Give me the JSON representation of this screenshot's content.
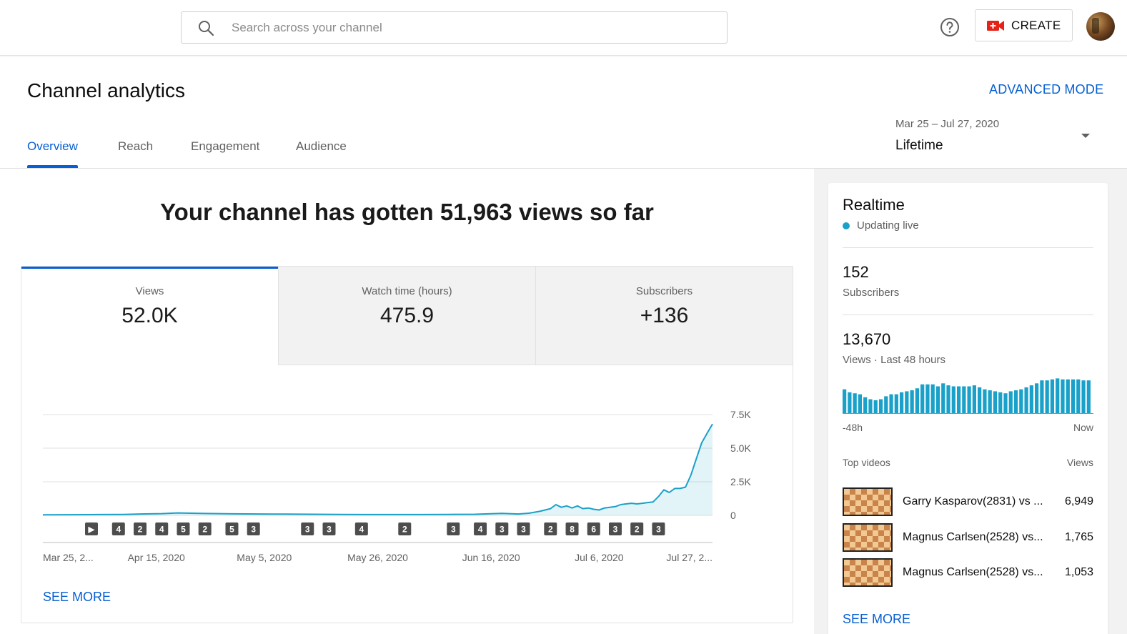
{
  "search": {
    "placeholder": "Search across your channel"
  },
  "topbar": {
    "create_label": "CREATE"
  },
  "header": {
    "title": "Channel analytics",
    "advanced_mode": "ADVANCED MODE",
    "tabs": [
      {
        "label": "Overview",
        "active": true
      },
      {
        "label": "Reach",
        "active": false
      },
      {
        "label": "Engagement",
        "active": false
      },
      {
        "label": "Audience",
        "active": false
      }
    ],
    "date_range": "Mar 25 – Jul 27, 2020",
    "date_selection": "Lifetime"
  },
  "main": {
    "headline": "Your channel has gotten 51,963 views so far",
    "metric_tabs": [
      {
        "label": "Views",
        "value": "52.0K",
        "active": true
      },
      {
        "label": "Watch time (hours)",
        "value": "475.9",
        "active": false
      },
      {
        "label": "Subscribers",
        "value": "+136",
        "active": false
      }
    ],
    "see_more": "SEE MORE"
  },
  "chart_data": {
    "type": "area",
    "title": "",
    "xlabel": "",
    "ylabel": "",
    "ylim": [
      0,
      7500
    ],
    "y_ticks": [
      "0",
      "2.5K",
      "5.0K",
      "7.5K"
    ],
    "x_tick_labels": [
      "Mar 25, 2...",
      "Apr 15, 2020",
      "May 5, 2020",
      "May 26, 2020",
      "Jun 16, 2020",
      "Jul 6, 2020",
      "Jul 27, 2..."
    ],
    "x_tick_days": [
      0,
      21,
      41,
      62,
      83,
      103,
      124
    ],
    "color": "#1aa1c9",
    "series": [
      {
        "x": [
          0,
          5,
          10,
          15,
          18,
          20,
          22,
          25,
          30,
          35,
          40,
          45,
          50,
          55,
          60,
          65,
          70,
          75,
          80,
          85,
          88,
          90,
          92,
          94,
          95,
          96,
          97,
          98,
          99,
          100,
          101,
          102,
          103,
          104,
          105,
          106,
          107,
          108,
          109,
          110,
          111,
          112,
          113,
          114,
          115,
          116,
          117,
          118,
          119,
          120,
          121,
          122,
          123,
          124
        ],
        "values": [
          40,
          50,
          60,
          70,
          100,
          110,
          130,
          180,
          140,
          110,
          100,
          90,
          80,
          70,
          60,
          60,
          60,
          70,
          80,
          150,
          100,
          160,
          300,
          500,
          800,
          600,
          700,
          550,
          700,
          500,
          550,
          450,
          400,
          550,
          600,
          650,
          800,
          850,
          900,
          850,
          900,
          950,
          1000,
          1400,
          1900,
          1700,
          2000,
          2000,
          2100,
          3000,
          4200,
          5400,
          6100,
          6800
        ]
      }
    ],
    "annotation_markers": [
      {
        "day": 9,
        "label": "▶"
      },
      {
        "day": 14,
        "label": "4"
      },
      {
        "day": 18,
        "label": "2"
      },
      {
        "day": 22,
        "label": "4"
      },
      {
        "day": 26,
        "label": "5"
      },
      {
        "day": 30,
        "label": "2"
      },
      {
        "day": 35,
        "label": "5"
      },
      {
        "day": 39,
        "label": "3"
      },
      {
        "day": 49,
        "label": "3"
      },
      {
        "day": 53,
        "label": "3"
      },
      {
        "day": 59,
        "label": "4"
      },
      {
        "day": 67,
        "label": "2"
      },
      {
        "day": 76,
        "label": "3"
      },
      {
        "day": 81,
        "label": "4"
      },
      {
        "day": 85,
        "label": "3"
      },
      {
        "day": 89,
        "label": "3"
      },
      {
        "day": 94,
        "label": "2"
      },
      {
        "day": 98,
        "label": "8"
      },
      {
        "day": 102,
        "label": "6"
      },
      {
        "day": 106,
        "label": "3"
      },
      {
        "day": 110,
        "label": "2"
      },
      {
        "day": 114,
        "label": "3"
      }
    ]
  },
  "realtime": {
    "title": "Realtime",
    "status": "Updating live",
    "subscribers_value": "152",
    "subscribers_label": "Subscribers",
    "views_value": "13,670",
    "views_label": "Views · Last 48 hours",
    "axis_start": "-48h",
    "axis_end": "Now",
    "bar_chart": {
      "type": "bar",
      "color": "#1aa1c9",
      "values": [
        24,
        21,
        20,
        19,
        16,
        14,
        13,
        14,
        17,
        19,
        19,
        21,
        22,
        23,
        25,
        29,
        29,
        29,
        27,
        30,
        28,
        27,
        27,
        27,
        27,
        28,
        26,
        24,
        23,
        22,
        21,
        20,
        22,
        23,
        24,
        26,
        28,
        30,
        33,
        33,
        34,
        35,
        34,
        34,
        34,
        34,
        33,
        33
      ]
    },
    "top_videos_heading": "Top videos",
    "views_heading": "Views",
    "top_videos": [
      {
        "title": "Garry Kasparov(2831) vs ...",
        "views": "6,949"
      },
      {
        "title": "Magnus Carlsen(2528) vs...",
        "views": "1,765"
      },
      {
        "title": "Magnus Carlsen(2528) vs...",
        "views": "1,053"
      }
    ],
    "see_more": "SEE MORE"
  }
}
